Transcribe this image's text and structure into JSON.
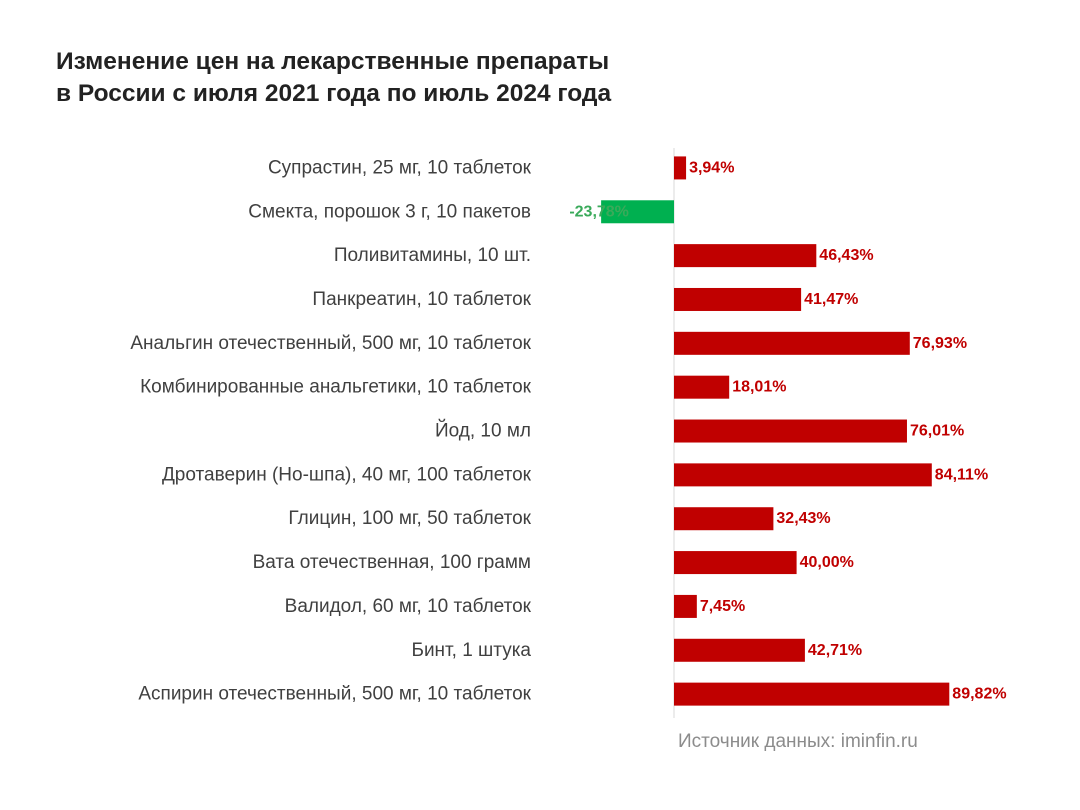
{
  "title_line1": "Изменение цен на лекарственные препараты",
  "title_line2": "в России с июля 2021 года по июль 2024 года",
  "source": "Источник данных: iminfin.ru",
  "colors": {
    "positive": "#c00000",
    "negative": "#00b050",
    "negative_label": "#3aaa5a",
    "axis": "#d9d9d9",
    "text": "#404040"
  },
  "chart_data": {
    "type": "bar",
    "orientation": "horizontal",
    "title": "Изменение цен на лекарственные препараты в России с июля 2021 года по июль 2024 года",
    "categories": [
      "Супрастин, 25 мг, 10 таблеток",
      "Смекта, порошок 3 г, 10 пакетов",
      "Поливитамины, 10 шт.",
      "Панкреатин, 10 таблеток",
      "Анальгин отечественный, 500 мг, 10 таблеток",
      "Комбинированные анальгетики, 10 таблеток",
      "Йод, 10 мл",
      "Дротаверин (Но-шпа), 40 мг, 100 таблеток",
      "Глицин, 100 мг, 50 таблеток",
      "Вата отечественная, 100 грамм",
      "Валидол, 60 мг, 10 таблеток",
      "Бинт, 1 штука",
      "Аспирин отечественный, 500 мг, 10 таблеток"
    ],
    "values": [
      3.94,
      -23.78,
      46.43,
      41.47,
      76.93,
      18.01,
      76.01,
      84.11,
      32.43,
      40.0,
      7.45,
      42.71,
      89.82
    ],
    "data_labels": [
      "3,94%",
      "-23,78%",
      "46,43%",
      "41,47%",
      "76,93%",
      "18,01%",
      "76,01%",
      "84,11%",
      "32,43%",
      "40,00%",
      "7,45%",
      "42,71%",
      "89,82%"
    ],
    "unit": "%",
    "grid": false,
    "legend": "none"
  }
}
